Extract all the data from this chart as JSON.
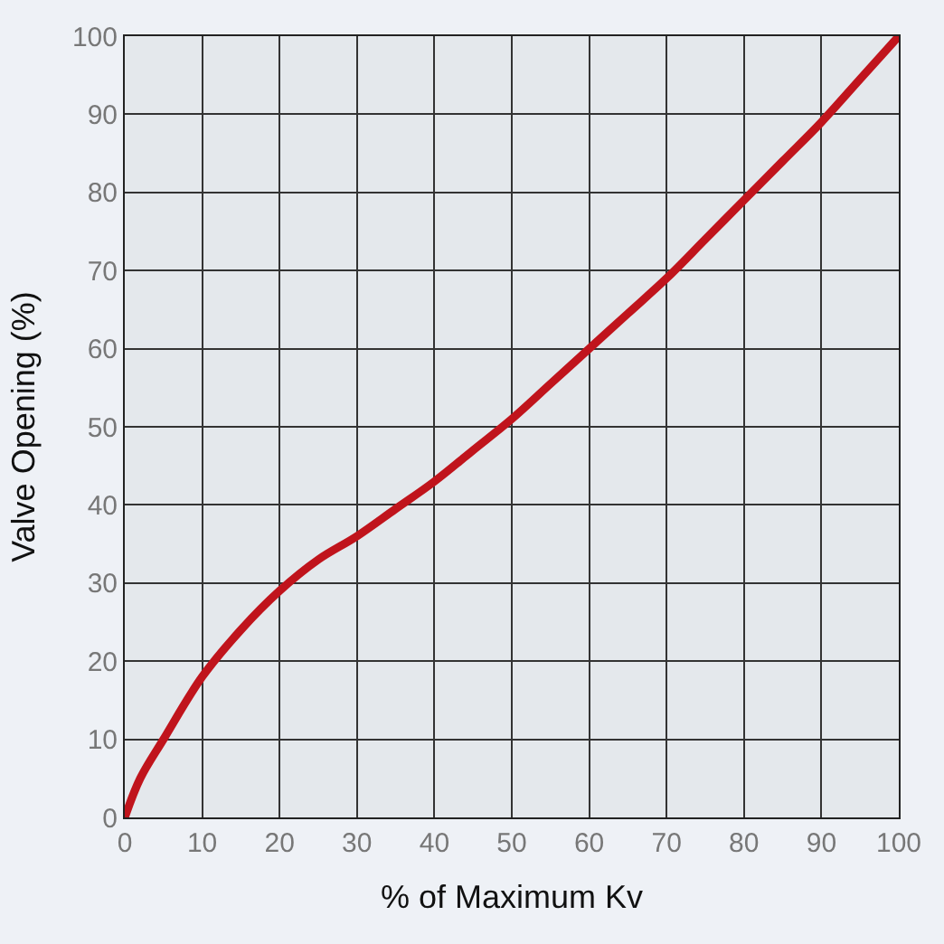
{
  "chart_data": {
    "type": "line",
    "xlabel": "% of Maximum Kv",
    "ylabel": "Valve Opening (%)",
    "x": [
      0,
      2,
      5,
      10,
      15,
      20,
      25,
      30,
      35,
      40,
      45,
      50,
      55,
      60,
      65,
      70,
      75,
      80,
      85,
      90,
      95,
      100
    ],
    "series": [
      {
        "color": "#c0141c",
        "values": [
          0,
          5,
          10,
          18,
          24,
          29,
          33,
          36,
          39.5,
          43,
          47,
          51,
          55.5,
          60,
          64.5,
          69,
          74,
          79,
          84,
          89,
          94.5,
          100
        ]
      }
    ],
    "xlim": [
      0,
      100
    ],
    "ylim": [
      0,
      100
    ],
    "xticks": [
      0,
      10,
      20,
      30,
      40,
      50,
      60,
      70,
      80,
      90,
      100
    ],
    "yticks": [
      0,
      10,
      20,
      30,
      40,
      50,
      60,
      70,
      80,
      90,
      100
    ],
    "grid": true,
    "marker": "none",
    "line_style": "solid",
    "legend": false
  }
}
